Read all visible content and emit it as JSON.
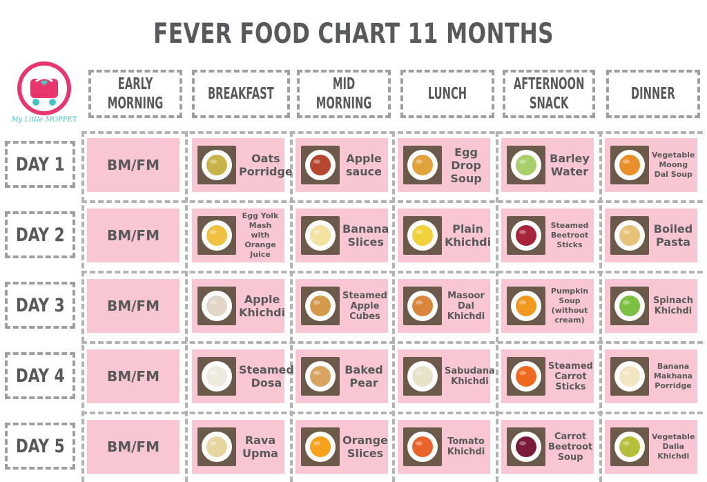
{
  "title": "FEVER FOOD CHART 11 MONTHS",
  "logo": {
    "text": "My Little MOPPET"
  },
  "columns": [
    {
      "line1": "EARLY",
      "line2": "MORNING"
    },
    {
      "line1": "BREAKFAST",
      "line2": ""
    },
    {
      "line1": "MID",
      "line2": "MORNING"
    },
    {
      "line1": "LUNCH",
      "line2": ""
    },
    {
      "line1": "AFTERNOON",
      "line2": "SNACK"
    },
    {
      "line1": "DINNER",
      "line2": ""
    }
  ],
  "days": [
    {
      "label": "DAY 1",
      "early": "BM/FM",
      "meals": [
        {
          "name": "Oats Porridge",
          "icon": "porridge-bowl-icon",
          "color": "#c8b24a"
        },
        {
          "name": "Apple sauce",
          "icon": "apple-sauce-bowl-icon",
          "color": "#b5472e"
        },
        {
          "name": "Egg Drop Soup",
          "icon": "soup-bowl-icon",
          "color": "#e0a23a"
        },
        {
          "name": "Barley Water",
          "icon": "glass-icon",
          "color": "#a8cf6a"
        },
        {
          "name": "Vegetable Moong Dal Soup",
          "icon": "soup-bowl-icon",
          "color": "#e88f2a"
        }
      ]
    },
    {
      "label": "DAY 2",
      "early": "BM/FM",
      "meals": [
        {
          "name": "Egg Yolk Mash with Orange Juice",
          "icon": "egg-bowl-icon",
          "color": "#f0c040"
        },
        {
          "name": "Banana Slices",
          "icon": "banana-icon",
          "color": "#f3e2a0"
        },
        {
          "name": "Plain Khichdi",
          "icon": "khichdi-plate-icon",
          "color": "#f2d23a"
        },
        {
          "name": "Steamed Beetroot Sticks",
          "icon": "beetroot-sticks-icon",
          "color": "#a8243a"
        },
        {
          "name": "Boiled Pasta",
          "icon": "pasta-icon",
          "color": "#e6c27a"
        }
      ]
    },
    {
      "label": "DAY 3",
      "early": "BM/FM",
      "meals": [
        {
          "name": "Apple Khichdi",
          "icon": "khichdi-bowl-icon",
          "color": "#e2d6c8"
        },
        {
          "name": "Steamed Apple Cubes",
          "icon": "apple-cubes-icon",
          "color": "#d49a4a"
        },
        {
          "name": "Masoor Dal Khichdi",
          "icon": "khichdi-plate-icon",
          "color": "#d9853a"
        },
        {
          "name": "Pumpkin Soup (without cream)",
          "icon": "soup-bowl-icon",
          "color": "#ef9a1e"
        },
        {
          "name": "Spinach Khichdi",
          "icon": "khichdi-bowl-icon",
          "color": "#7bc043"
        }
      ]
    },
    {
      "label": "DAY 4",
      "early": "BM/FM",
      "meals": [
        {
          "name": "Steamed Dosa",
          "icon": "dosa-icon",
          "color": "#eeeae0"
        },
        {
          "name": "Baked Pear",
          "icon": "pear-icon",
          "color": "#d8a460"
        },
        {
          "name": "Sabudana Khichdi",
          "icon": "khichdi-bowl-icon",
          "color": "#e8e2c8"
        },
        {
          "name": "Steamed Carrot Sticks",
          "icon": "carrot-sticks-icon",
          "color": "#ef6a1e"
        },
        {
          "name": "Banana Makhana Porridge",
          "icon": "porridge-bowl-icon",
          "color": "#f2e6c0"
        }
      ]
    },
    {
      "label": "DAY 5",
      "early": "BM/FM",
      "meals": [
        {
          "name": "Rava Upma",
          "icon": "upma-plate-icon",
          "color": "#e8d6a0"
        },
        {
          "name": "Orange Slices",
          "icon": "orange-slices-icon",
          "color": "#f7a21a"
        },
        {
          "name": "Tomato Khichdi",
          "icon": "khichdi-plate-icon",
          "color": "#e8642a"
        },
        {
          "name": "Carrot Beetroot Soup",
          "icon": "soup-bowl-icon",
          "color": "#7a1a3a"
        },
        {
          "name": "Vegetable Dalia Khichdi",
          "icon": "khichdi-bowl-icon",
          "color": "#b6bf3a"
        }
      ]
    }
  ]
}
